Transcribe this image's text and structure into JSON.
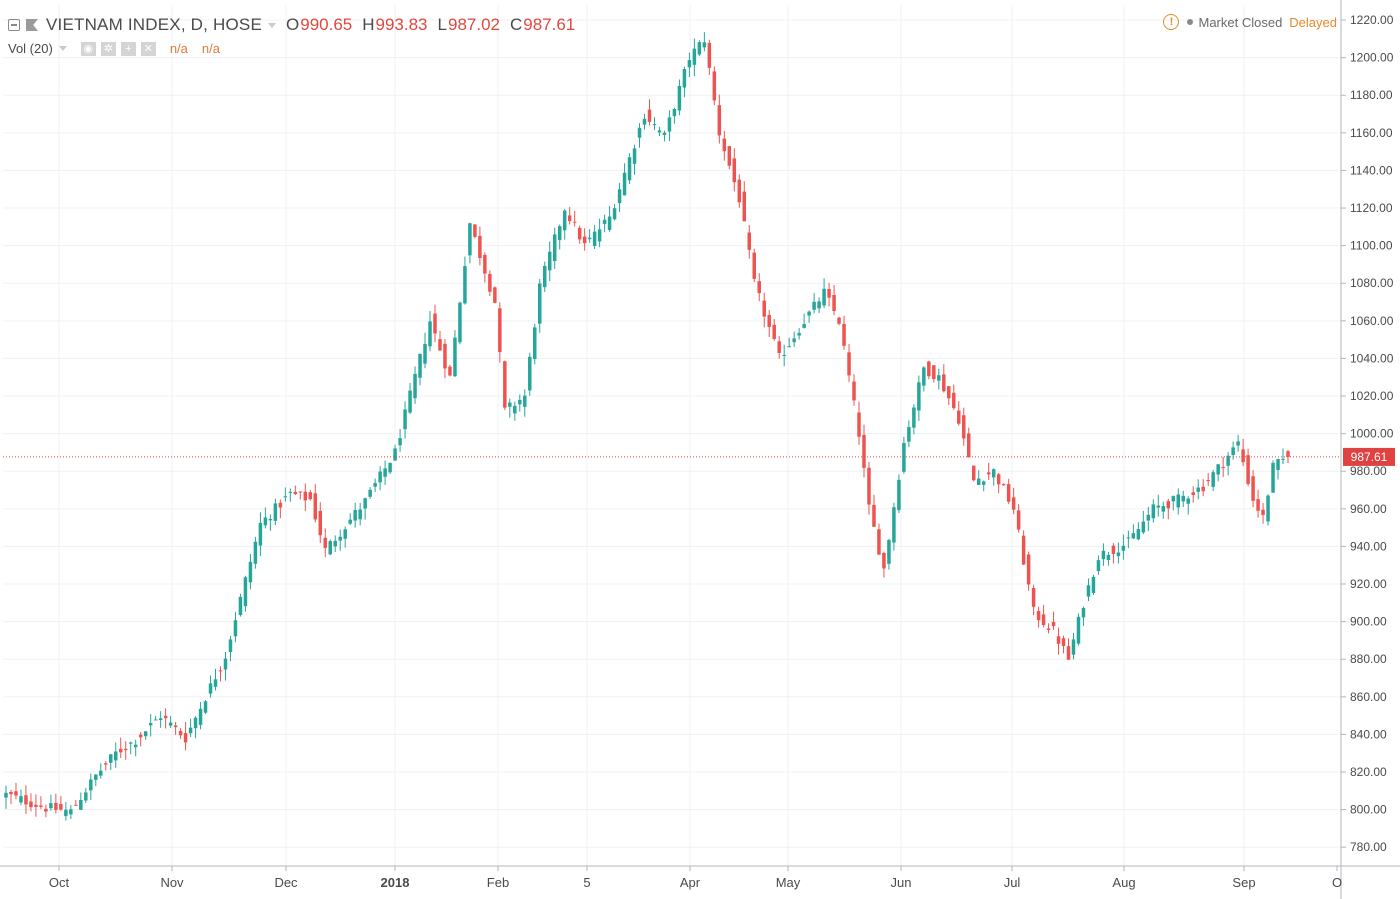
{
  "header": {
    "symbol": "VIETNAM INDEX, D, HOSE",
    "open_label": "O",
    "open": "990.65",
    "high_label": "H",
    "high": "993.83",
    "low_label": "L",
    "low": "987.02",
    "close_label": "C",
    "close": "987.61",
    "volume_label": "Vol (20)",
    "volume_value_1": "n/a",
    "volume_value_2": "n/a"
  },
  "status": {
    "market": "Market Closed",
    "feed": "Delayed"
  },
  "icons": {
    "collapse": "collapse-icon",
    "flag": "flag-icon",
    "warning": "warning-icon",
    "settings": "gear-icon",
    "visibility": "eye-icon",
    "add": "plus-icon",
    "remove": "close-icon"
  },
  "colors": {
    "up": "#26a69a",
    "down": "#ef5350",
    "last_price": "#e04141",
    "grid": "#eef0f4",
    "axis": "#b2b5be"
  },
  "chart_data": {
    "type": "candlestick",
    "ylim": [
      770,
      1228
    ],
    "y_ticks": [
      "780.00",
      "800.00",
      "820.00",
      "840.00",
      "860.00",
      "880.00",
      "900.00",
      "920.00",
      "940.00",
      "960.00",
      "980.00",
      "1000.00",
      "1020.00",
      "1040.00",
      "1060.00",
      "1080.00",
      "1100.00",
      "1120.00",
      "1140.00",
      "1160.00",
      "1180.00",
      "1200.00",
      "1220.00"
    ],
    "x_ticks": [
      "Oct",
      "Nov",
      "Dec",
      "2018",
      "Feb",
      "5",
      "Apr",
      "May",
      "Jun",
      "Jul",
      "Aug",
      "Sep",
      "O"
    ],
    "last_price": 987.61,
    "last_price_label": "987.61",
    "ohlc_anchors": [
      [
        0,
        808
      ],
      [
        8,
        801
      ],
      [
        13,
        799
      ],
      [
        18,
        818
      ],
      [
        22,
        830
      ],
      [
        26,
        837
      ],
      [
        31,
        850
      ],
      [
        36,
        838
      ],
      [
        44,
        882
      ],
      [
        51,
        952
      ],
      [
        57,
        968
      ],
      [
        61,
        965
      ],
      [
        64,
        938
      ],
      [
        72,
        964
      ],
      [
        78,
        990
      ],
      [
        85,
        1060
      ],
      [
        89,
        1030
      ],
      [
        93,
        1112
      ],
      [
        98,
        1070
      ],
      [
        100,
        1012
      ],
      [
        104,
        1020
      ],
      [
        107,
        1078
      ],
      [
        112,
        1120
      ],
      [
        116,
        1100
      ],
      [
        121,
        1115
      ],
      [
        128,
        1170
      ],
      [
        132,
        1158
      ],
      [
        137,
        1200
      ],
      [
        140,
        1210
      ],
      [
        143,
        1160
      ],
      [
        147,
        1125
      ],
      [
        150,
        1080
      ],
      [
        155,
        1040
      ],
      [
        160,
        1060
      ],
      [
        164,
        1075
      ],
      [
        167,
        1060
      ],
      [
        171,
        1000
      ],
      [
        173,
        960
      ],
      [
        176,
        928
      ],
      [
        180,
        995
      ],
      [
        184,
        1035
      ],
      [
        187,
        1030
      ],
      [
        191,
        1008
      ],
      [
        194,
        975
      ],
      [
        198,
        980
      ],
      [
        202,
        960
      ],
      [
        206,
        905
      ],
      [
        210,
        895
      ],
      [
        213,
        880
      ],
      [
        216,
        910
      ],
      [
        219,
        935
      ],
      [
        225,
        942
      ],
      [
        230,
        960
      ],
      [
        235,
        965
      ],
      [
        240,
        972
      ],
      [
        244,
        985
      ],
      [
        247,
        995
      ],
      [
        250,
        965
      ],
      [
        252,
        955
      ],
      [
        254,
        982
      ],
      [
        257,
        987.61
      ]
    ]
  }
}
